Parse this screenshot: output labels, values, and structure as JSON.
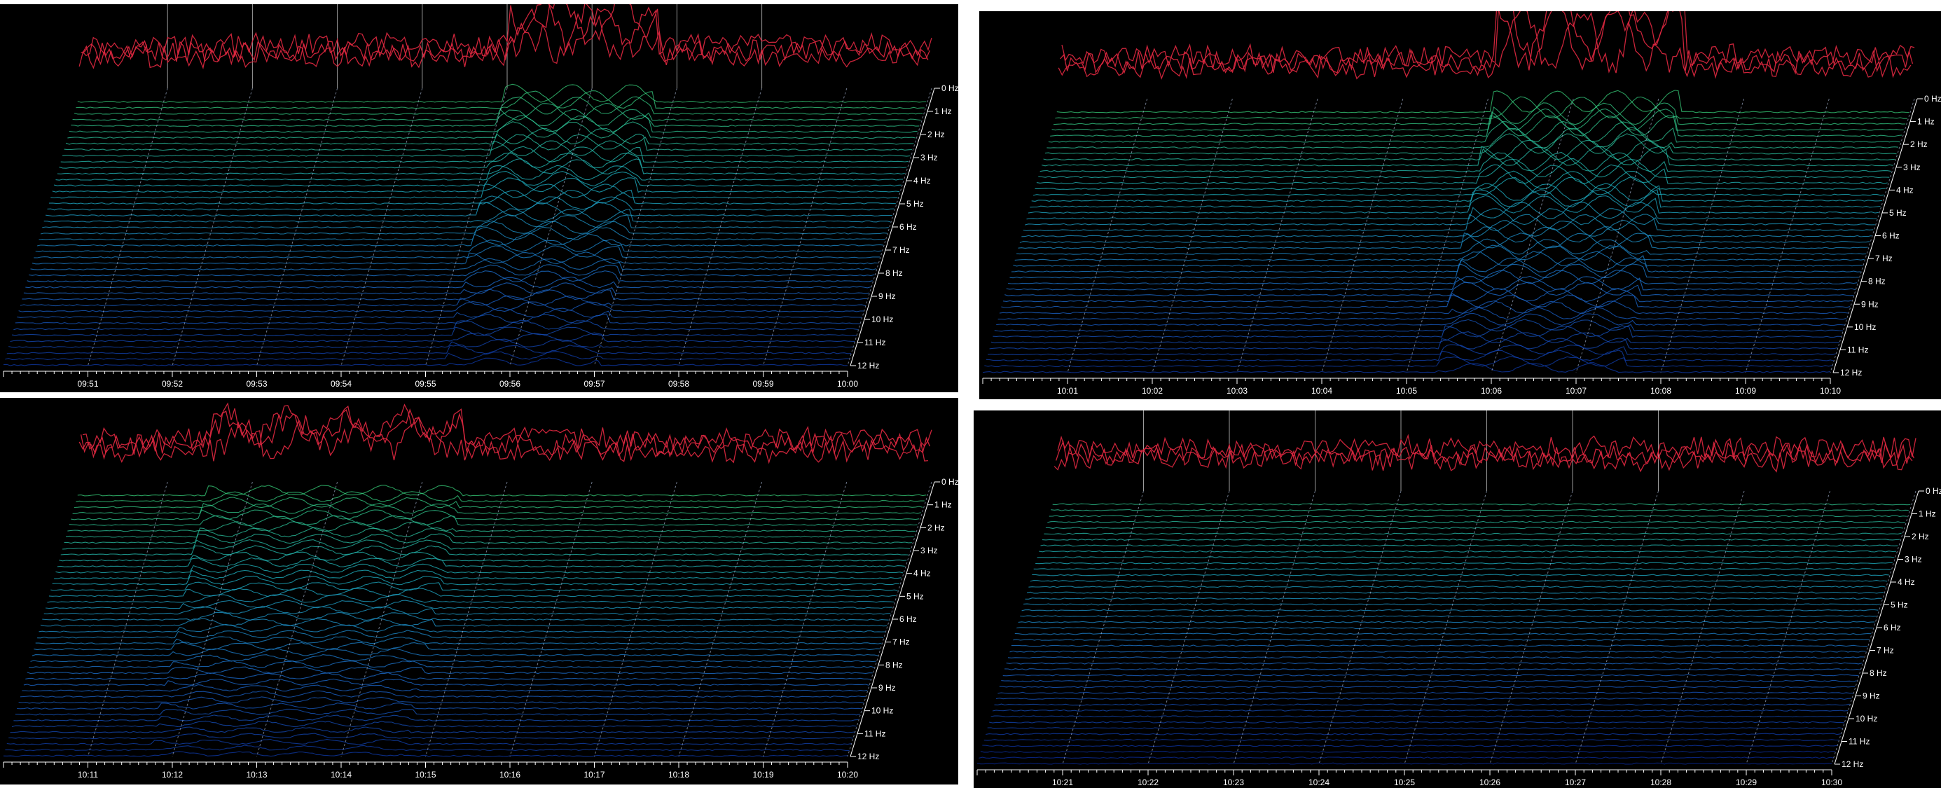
{
  "chart_data": [
    {
      "type": "area",
      "xlabel": "",
      "ylabel": "",
      "time_ticks": [
        "09:51",
        "09:52",
        "09:53",
        "09:54",
        "09:55",
        "09:56",
        "09:57",
        "09:58",
        "09:59",
        "10:00"
      ],
      "freq_ticks": [
        "0 Hz",
        "1 Hz",
        "2 Hz",
        "3 Hz",
        "4 Hz",
        "5 Hz",
        "6 Hz",
        "7 Hz",
        "8 Hz",
        "9 Hz",
        "10 Hz",
        "11 Hz",
        "12 Hz"
      ],
      "xlim": [
        "09:50",
        "10:00"
      ],
      "ylim_hz": [
        0,
        12
      ],
      "events": [
        {
          "start": "09:55.0",
          "end": "09:56.8",
          "strength": 0.8
        }
      ],
      "colormap": [
        "#0a2a9e",
        "#1e6fd6",
        "#1fb8c8",
        "#3cd46a",
        "#e6e82a",
        "#e02840"
      ]
    },
    {
      "type": "area",
      "xlabel": "",
      "ylabel": "",
      "time_ticks": [
        "10:01",
        "10:02",
        "10:03",
        "10:04",
        "10:05",
        "10:06",
        "10:07",
        "10:08",
        "10:09",
        "10:10"
      ],
      "freq_ticks": [
        "0 Hz",
        "1 Hz",
        "2 Hz",
        "3 Hz",
        "4 Hz",
        "5 Hz",
        "6 Hz",
        "7 Hz",
        "8 Hz",
        "9 Hz",
        "10 Hz",
        "11 Hz",
        "12 Hz"
      ],
      "xlim": [
        "10:00",
        "10:10"
      ],
      "ylim_hz": [
        0,
        12
      ],
      "events": [
        {
          "start": "10:05.1",
          "end": "10:07.3",
          "strength": 1.0
        }
      ],
      "colormap": [
        "#0a2a9e",
        "#1e6fd6",
        "#1fb8c8",
        "#3cd46a",
        "#e6e82a",
        "#e02840"
      ]
    },
    {
      "type": "area",
      "xlabel": "",
      "ylabel": "",
      "time_ticks": [
        "10:11",
        "10:12",
        "10:13",
        "10:14",
        "10:15",
        "10:16",
        "10:17",
        "10:18",
        "10:19",
        "10:20"
      ],
      "freq_ticks": [
        "0 Hz",
        "1 Hz",
        "2 Hz",
        "3 Hz",
        "4 Hz",
        "5 Hz",
        "6 Hz",
        "7 Hz",
        "8 Hz",
        "9 Hz",
        "10 Hz",
        "11 Hz",
        "12 Hz"
      ],
      "xlim": [
        "10:10",
        "10:20"
      ],
      "ylim_hz": [
        0,
        12
      ],
      "events": [
        {
          "start": "10:11.5",
          "end": "10:14.5",
          "strength": 0.45
        }
      ],
      "colormap": [
        "#0a2a9e",
        "#1e6fd6",
        "#1fb8c8",
        "#3cd46a",
        "#e6e82a",
        "#e02840"
      ]
    },
    {
      "type": "area",
      "xlabel": "",
      "ylabel": "",
      "time_ticks": [
        "10:21",
        "10:22",
        "10:23",
        "10:24",
        "10:25",
        "10:26",
        "10:27",
        "10:28",
        "10:29",
        "10:30"
      ],
      "freq_ticks": [
        "0 Hz",
        "1 Hz",
        "2 Hz",
        "3 Hz",
        "4 Hz",
        "5 Hz",
        "6 Hz",
        "7 Hz",
        "8 Hz",
        "9 Hz",
        "10 Hz",
        "11 Hz",
        "12 Hz"
      ],
      "xlim": [
        "10:20",
        "10:30"
      ],
      "ylim_hz": [
        0,
        12
      ],
      "events": [],
      "colormap": [
        "#0a2a9e",
        "#1e6fd6",
        "#1fb8c8",
        "#3cd46a",
        "#e6e82a",
        "#e02840"
      ]
    }
  ]
}
